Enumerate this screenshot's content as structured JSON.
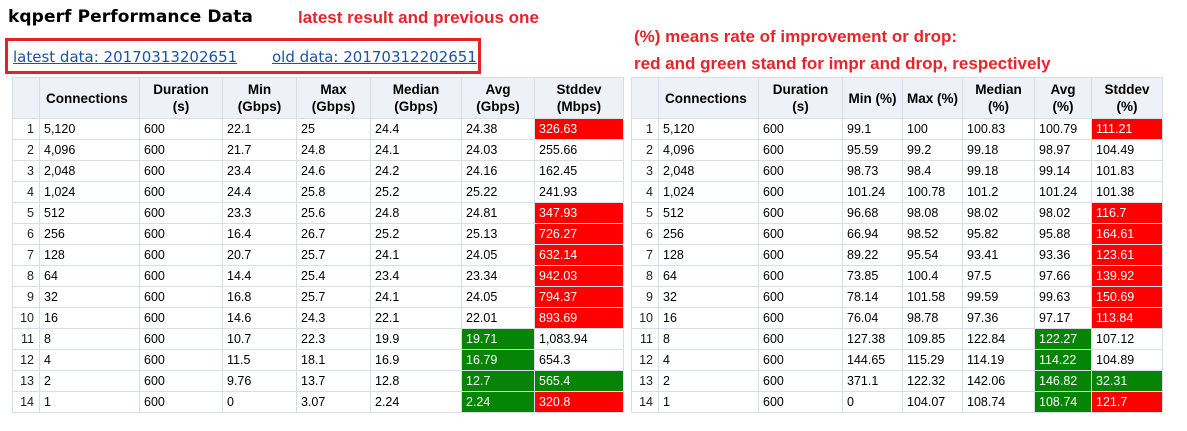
{
  "page": {
    "title": "kqperf Performance Data",
    "annotation_latest": "latest result and previous one",
    "annotation_legend_line1": "(%) means rate of improvement or drop:",
    "annotation_legend_line2": "red and green stand for impr and drop, respectively",
    "latest_link": "latest data: 20170313202651",
    "old_link": "old data: 20170312202651"
  },
  "colors": {
    "drop": "#fe0000",
    "improve": "#058405",
    "annotation": "#e8242a",
    "link": "#1a53a8"
  },
  "latest_table": {
    "headers": [
      "",
      "Connections",
      "Duration (s)",
      "Min (Gbps)",
      "Max (Gbps)",
      "Median (Gbps)",
      "Avg (Gbps)",
      "Stddev (Mbps)"
    ],
    "rows": [
      {
        "cells": [
          "1",
          "5,120",
          "600",
          "22.1",
          "25",
          "24.4",
          "24.38",
          "326.63"
        ],
        "hl": [
          "",
          "",
          "",
          "",
          "",
          "",
          "",
          "red"
        ]
      },
      {
        "cells": [
          "2",
          "4,096",
          "600",
          "21.7",
          "24.8",
          "24.1",
          "24.03",
          "255.66"
        ],
        "hl": [
          "",
          "",
          "",
          "",
          "",
          "",
          "",
          ""
        ]
      },
      {
        "cells": [
          "3",
          "2,048",
          "600",
          "23.4",
          "24.6",
          "24.2",
          "24.16",
          "162.45"
        ],
        "hl": [
          "",
          "",
          "",
          "",
          "",
          "",
          "",
          ""
        ]
      },
      {
        "cells": [
          "4",
          "1,024",
          "600",
          "24.4",
          "25.8",
          "25.2",
          "25.22",
          "241.93"
        ],
        "hl": [
          "",
          "",
          "",
          "",
          "",
          "",
          "",
          ""
        ]
      },
      {
        "cells": [
          "5",
          "512",
          "600",
          "23.3",
          "25.6",
          "24.8",
          "24.81",
          "347.93"
        ],
        "hl": [
          "",
          "",
          "",
          "",
          "",
          "",
          "",
          "red"
        ]
      },
      {
        "cells": [
          "6",
          "256",
          "600",
          "16.4",
          "26.7",
          "25.2",
          "25.13",
          "726.27"
        ],
        "hl": [
          "",
          "",
          "",
          "",
          "",
          "",
          "",
          "red"
        ]
      },
      {
        "cells": [
          "7",
          "128",
          "600",
          "20.7",
          "25.7",
          "24.1",
          "24.05",
          "632.14"
        ],
        "hl": [
          "",
          "",
          "",
          "",
          "",
          "",
          "",
          "red"
        ]
      },
      {
        "cells": [
          "8",
          "64",
          "600",
          "14.4",
          "25.4",
          "23.4",
          "23.34",
          "942.03"
        ],
        "hl": [
          "",
          "",
          "",
          "",
          "",
          "",
          "",
          "red"
        ]
      },
      {
        "cells": [
          "9",
          "32",
          "600",
          "16.8",
          "25.7",
          "24.1",
          "24.05",
          "794.37"
        ],
        "hl": [
          "",
          "",
          "",
          "",
          "",
          "",
          "",
          "red"
        ]
      },
      {
        "cells": [
          "10",
          "16",
          "600",
          "14.6",
          "24.3",
          "22.1",
          "22.01",
          "893.69"
        ],
        "hl": [
          "",
          "",
          "",
          "",
          "",
          "",
          "",
          "red"
        ]
      },
      {
        "cells": [
          "11",
          "8",
          "600",
          "10.7",
          "22.3",
          "19.9",
          "19.71",
          "1,083.94"
        ],
        "hl": [
          "",
          "",
          "",
          "",
          "",
          "",
          "green",
          ""
        ]
      },
      {
        "cells": [
          "12",
          "4",
          "600",
          "11.5",
          "18.1",
          "16.9",
          "16.79",
          "654.3"
        ],
        "hl": [
          "",
          "",
          "",
          "",
          "",
          "",
          "green",
          ""
        ]
      },
      {
        "cells": [
          "13",
          "2",
          "600",
          "9.76",
          "13.7",
          "12.8",
          "12.7",
          "565.4"
        ],
        "hl": [
          "",
          "",
          "",
          "",
          "",
          "",
          "green",
          "green"
        ]
      },
      {
        "cells": [
          "14",
          "1",
          "600",
          "0",
          "3.07",
          "2.24",
          "2.24",
          "320.8"
        ],
        "hl": [
          "",
          "",
          "",
          "",
          "",
          "",
          "green",
          "red"
        ]
      }
    ]
  },
  "compare_table": {
    "headers": [
      "",
      "Connections",
      "Duration (s)",
      "Min (%)",
      "Max (%)",
      "Median (%)",
      "Avg (%)",
      "Stddev (%)"
    ],
    "rows": [
      {
        "cells": [
          "1",
          "5,120",
          "600",
          "99.1",
          "100",
          "100.83",
          "100.79",
          "111.21"
        ],
        "hl": [
          "",
          "",
          "",
          "",
          "",
          "",
          "",
          "red"
        ]
      },
      {
        "cells": [
          "2",
          "4,096",
          "600",
          "95.59",
          "99.2",
          "99.18",
          "98.97",
          "104.49"
        ],
        "hl": [
          "",
          "",
          "",
          "",
          "",
          "",
          "",
          ""
        ]
      },
      {
        "cells": [
          "3",
          "2,048",
          "600",
          "98.73",
          "98.4",
          "99.18",
          "99.14",
          "101.83"
        ],
        "hl": [
          "",
          "",
          "",
          "",
          "",
          "",
          "",
          ""
        ]
      },
      {
        "cells": [
          "4",
          "1,024",
          "600",
          "101.24",
          "100.78",
          "101.2",
          "101.24",
          "101.38"
        ],
        "hl": [
          "",
          "",
          "",
          "",
          "",
          "",
          "",
          ""
        ]
      },
      {
        "cells": [
          "5",
          "512",
          "600",
          "96.68",
          "98.08",
          "98.02",
          "98.02",
          "116.7"
        ],
        "hl": [
          "",
          "",
          "",
          "",
          "",
          "",
          "",
          "red"
        ]
      },
      {
        "cells": [
          "6",
          "256",
          "600",
          "66.94",
          "98.52",
          "95.82",
          "95.88",
          "164.61"
        ],
        "hl": [
          "",
          "",
          "",
          "",
          "",
          "",
          "",
          "red"
        ]
      },
      {
        "cells": [
          "7",
          "128",
          "600",
          "89.22",
          "95.54",
          "93.41",
          "93.36",
          "123.61"
        ],
        "hl": [
          "",
          "",
          "",
          "",
          "",
          "",
          "",
          "red"
        ]
      },
      {
        "cells": [
          "8",
          "64",
          "600",
          "73.85",
          "100.4",
          "97.5",
          "97.66",
          "139.92"
        ],
        "hl": [
          "",
          "",
          "",
          "",
          "",
          "",
          "",
          "red"
        ]
      },
      {
        "cells": [
          "9",
          "32",
          "600",
          "78.14",
          "101.58",
          "99.59",
          "99.63",
          "150.69"
        ],
        "hl": [
          "",
          "",
          "",
          "",
          "",
          "",
          "",
          "red"
        ]
      },
      {
        "cells": [
          "10",
          "16",
          "600",
          "76.04",
          "98.78",
          "97.36",
          "97.17",
          "113.84"
        ],
        "hl": [
          "",
          "",
          "",
          "",
          "",
          "",
          "",
          "red"
        ]
      },
      {
        "cells": [
          "11",
          "8",
          "600",
          "127.38",
          "109.85",
          "122.84",
          "122.27",
          "107.12"
        ],
        "hl": [
          "",
          "",
          "",
          "",
          "",
          "",
          "green",
          ""
        ]
      },
      {
        "cells": [
          "12",
          "4",
          "600",
          "144.65",
          "115.29",
          "114.19",
          "114.22",
          "104.89"
        ],
        "hl": [
          "",
          "",
          "",
          "",
          "",
          "",
          "green",
          ""
        ]
      },
      {
        "cells": [
          "13",
          "2",
          "600",
          "371.1",
          "122.32",
          "142.06",
          "146.82",
          "32.31"
        ],
        "hl": [
          "",
          "",
          "",
          "",
          "",
          "",
          "green",
          "green"
        ]
      },
      {
        "cells": [
          "14",
          "1",
          "600",
          "0",
          "104.07",
          "108.74",
          "108.74",
          "121.7"
        ],
        "hl": [
          "",
          "",
          "",
          "",
          "",
          "",
          "green",
          "red"
        ]
      }
    ]
  }
}
